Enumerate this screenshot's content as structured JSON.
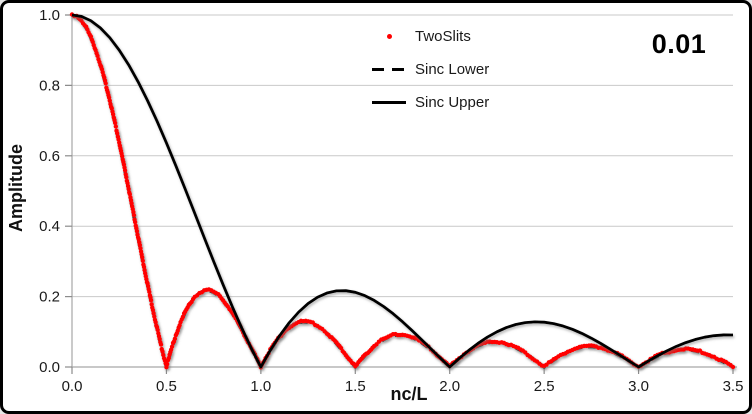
{
  "window": {
    "background": "#ffffff",
    "border_color": "#000000"
  },
  "annotation": {
    "text": "0.01"
  },
  "axes": {
    "x_label": "nc/L",
    "y_label": "Amplitude",
    "x_tick_labels": [
      "0.0",
      "0.5",
      "1.0",
      "1.5",
      "2.0",
      "2.5",
      "3.0",
      "3.5"
    ],
    "y_tick_labels": [
      "0.0",
      "0.2",
      "0.4",
      "0.6",
      "0.8",
      "1.0"
    ],
    "tick_label_color": "#1a1a1a",
    "axis_line_color": "#a6a6a6",
    "gridline_color": "#c9c9c9"
  },
  "legend": {
    "position": "top-center",
    "items": [
      {
        "label": "TwoSlits",
        "marker": "red-dot",
        "color": "#ff0000"
      },
      {
        "label": "Sinc Lower",
        "marker": "black-dash",
        "color": "#000000"
      },
      {
        "label": "Sinc Upper",
        "marker": "black-solid",
        "color": "#000000"
      }
    ]
  },
  "chart_data": {
    "type": "line",
    "title": "",
    "annotation": "0.01",
    "xlabel": "nc/L",
    "ylabel": "Amplitude",
    "xlim": [
      0,
      3.5
    ],
    "ylim": [
      0,
      1.0
    ],
    "x_ticks": [
      0,
      0.5,
      1.0,
      1.5,
      2.0,
      2.5,
      3.0,
      3.5
    ],
    "y_ticks": [
      0,
      0.2,
      0.4,
      0.6,
      0.8,
      1.0
    ],
    "grid": "horizontal",
    "legend_position": "top-center",
    "series": [
      {
        "name": "TwoSlits",
        "type": "scatter",
        "marker": "round-dot",
        "color": "#ff0000",
        "x0": 0,
        "dx": 0.025,
        "y_same_as": "Sinc Lower",
        "note": "dense red dots overlapping the Sinc Lower curve; zeros every 0.5"
      },
      {
        "name": "Sinc Lower",
        "type": "line",
        "line_style": "dashed",
        "color": "#000000",
        "x0": 0,
        "dx": 0.025,
        "y": [
          1.0,
          0.9959,
          0.9836,
          0.9634,
          0.9355,
          0.9003,
          0.8584,
          0.8103,
          0.7568,
          0.6987,
          0.6366,
          0.5716,
          0.5046,
          0.4363,
          0.3679,
          0.3001,
          0.2339,
          0.17,
          0.1093,
          0.0524,
          0.0,
          0.0474,
          0.0894,
          0.1257,
          0.1559,
          0.1801,
          0.1981,
          0.2101,
          0.2162,
          0.2168,
          0.2122,
          0.2028,
          0.1892,
          0.1719,
          0.1515,
          0.1286,
          0.1039,
          0.0781,
          0.0518,
          0.0255,
          0.0,
          0.0243,
          0.0468,
          0.0672,
          0.085,
          0.1,
          0.112,
          0.1207,
          0.1261,
          0.1283,
          0.1273,
          0.1233,
          0.1164,
          0.107,
          0.0954,
          0.0818,
          0.0668,
          0.0507,
          0.0339,
          0.0169,
          0.0,
          0.0163,
          0.0317,
          0.0459,
          0.0585,
          0.0693,
          0.078,
          0.0847,
          0.089,
          0.0911,
          0.091,
          0.0886,
          0.0841,
          0.0777,
          0.0696,
          0.06,
          0.0492,
          0.0375,
          0.0252,
          0.0126,
          0.0,
          0.0123,
          0.024,
          0.0348,
          0.0445,
          0.053,
          0.0599,
          0.0652,
          0.0688,
          0.0707,
          0.0707,
          0.0691,
          0.0658,
          0.061,
          0.0548,
          0.0474,
          0.039,
          0.0298,
          0.0201,
          0.0101,
          0.0,
          0.0099,
          0.0193,
          0.0281,
          0.036,
          0.0429,
          0.0486,
          0.053,
          0.0561,
          0.0577,
          0.0579,
          0.0566,
          0.0541,
          0.0502,
          0.0452,
          0.0391,
          0.0323,
          0.0247,
          0.0167,
          0.0084,
          0.0,
          0.0082,
          0.0161,
          0.0235,
          0.0302,
          0.036,
          0.0409,
          0.0447,
          0.0473,
          0.0487,
          0.049,
          0.048,
          0.0459,
          0.0427,
          0.0384,
          0.0333,
          0.0275,
          0.0211,
          0.0143,
          0.0072,
          0.0
        ]
      },
      {
        "name": "Sinc Upper",
        "type": "line",
        "line_style": "solid",
        "color": "#000000",
        "x0": 0,
        "dx": 0.05,
        "y": [
          1.0,
          0.9959,
          0.9836,
          0.9634,
          0.9355,
          0.9003,
          0.8584,
          0.8103,
          0.7568,
          0.6987,
          0.6366,
          0.5716,
          0.5046,
          0.4363,
          0.3679,
          0.3001,
          0.2339,
          0.17,
          0.1093,
          0.0524,
          0.0,
          0.0474,
          0.0894,
          0.1257,
          0.1559,
          0.1801,
          0.1981,
          0.2101,
          0.2162,
          0.2168,
          0.2122,
          0.2028,
          0.1892,
          0.1719,
          0.1515,
          0.1286,
          0.1039,
          0.0781,
          0.0518,
          0.0255,
          0.0,
          0.0243,
          0.0468,
          0.0672,
          0.085,
          0.1,
          0.112,
          0.1207,
          0.1261,
          0.1283,
          0.1273,
          0.1233,
          0.1164,
          0.107,
          0.0954,
          0.0818,
          0.0668,
          0.0507,
          0.0339,
          0.0169,
          0.0,
          0.0163,
          0.0317,
          0.0459,
          0.0585,
          0.0693,
          0.078,
          0.0847,
          0.089,
          0.0911,
          0.091
        ]
      }
    ]
  }
}
